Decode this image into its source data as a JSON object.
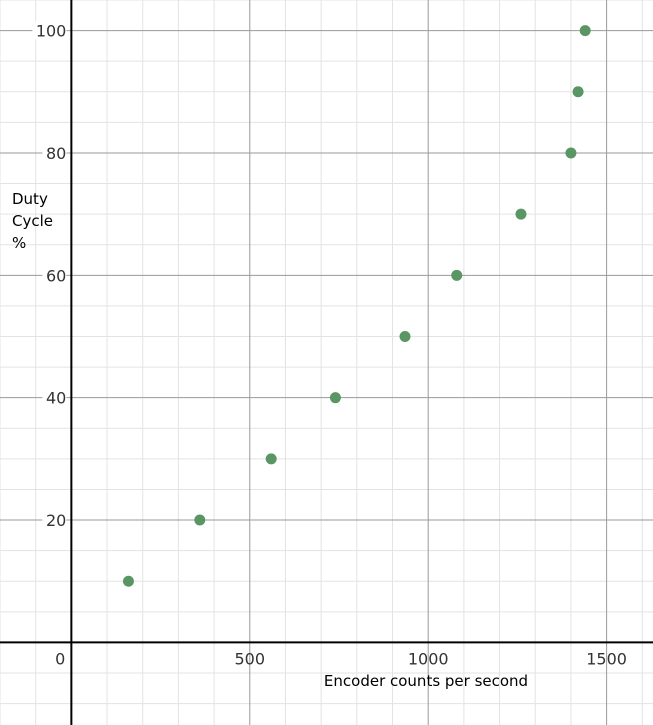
{
  "chart_data": {
    "type": "scatter",
    "title": "",
    "xlabel": "Encoder counts per second",
    "ylabel_lines": [
      "Duty",
      "Cycle",
      "%"
    ],
    "xlim": [
      -200,
      1630
    ],
    "ylim": [
      -13.5,
      105
    ],
    "x_ticks": [
      0,
      500,
      1000,
      1500
    ],
    "y_ticks": [
      20,
      40,
      60,
      80,
      100
    ],
    "grid": true,
    "minor_grid_step_x": 100,
    "minor_grid_step_y": 5,
    "marker_color": "#5a9664",
    "series": [
      {
        "x": [
          160,
          360,
          560,
          740,
          935,
          1080,
          1260,
          1400,
          1420,
          1440
        ],
        "y": [
          10,
          20,
          30,
          40,
          50,
          60,
          70,
          80,
          90,
          100
        ]
      }
    ]
  }
}
